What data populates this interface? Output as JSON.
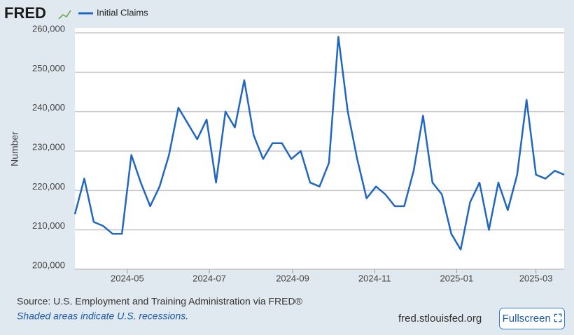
{
  "logo": "FRED",
  "chart_data": {
    "type": "line",
    "y_label": "Number",
    "series": [
      {
        "name": "Initial Claims",
        "color": "#2166c1",
        "values": [
          214000,
          223000,
          212000,
          211000,
          209000,
          209000,
          229000,
          222000,
          216000,
          221000,
          229000,
          241000,
          237000,
          233000,
          238000,
          222000,
          240000,
          236000,
          248000,
          234000,
          228000,
          232000,
          232000,
          228000,
          230000,
          222000,
          221000,
          227000,
          259000,
          240000,
          228000,
          218000,
          221000,
          219000,
          216000,
          216000,
          225000,
          239000,
          222000,
          219000,
          209000,
          205000,
          217000,
          222000,
          210000,
          222000,
          215000,
          224000,
          243000,
          224000,
          223000,
          225000,
          224000
        ]
      }
    ],
    "xlim": [
      0,
      52
    ],
    "xticks": [
      {
        "value": 5.57,
        "label": "2024-05"
      },
      {
        "value": 14.29,
        "label": "2024-07"
      },
      {
        "value": 23.14,
        "label": "2024-09"
      },
      {
        "value": 31.86,
        "label": "2024-11"
      },
      {
        "value": 40.57,
        "label": "2025-01"
      },
      {
        "value": 49.0,
        "label": "2025-03"
      }
    ],
    "ylim": [
      200000,
      260000
    ],
    "yticks": [
      {
        "value": 200000,
        "label": "200,000"
      },
      {
        "value": 210000,
        "label": "210,000"
      },
      {
        "value": 220000,
        "label": "220,000"
      },
      {
        "value": 230000,
        "label": "230,000"
      },
      {
        "value": 240000,
        "label": "240,000"
      },
      {
        "value": 250000,
        "label": "250,000"
      },
      {
        "value": 260000,
        "label": "260,000"
      }
    ],
    "grid": true
  },
  "footer": {
    "source": "Source: U.S. Employment and Training Administration via FRED®",
    "note": "Shaded areas indicate U.S. recessions.",
    "site": "fred.stlouisfed.org",
    "button": "Fullscreen"
  }
}
